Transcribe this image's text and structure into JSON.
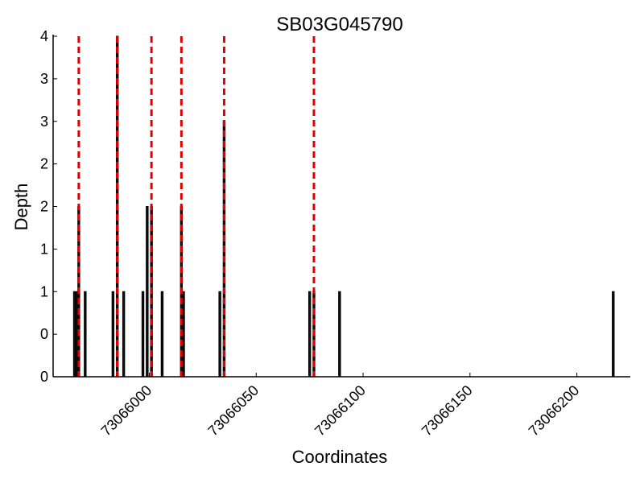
{
  "chart_data": {
    "type": "bar",
    "title": "SB03G045790",
    "xlabel": "Coordinates",
    "ylabel": "Depth",
    "xlim": [
      73065955,
      73066225
    ],
    "ylim": [
      0,
      4
    ],
    "x_ticks": [
      73066000,
      73066050,
      73066100,
      73066150,
      73066200
    ],
    "x_tick_labels": [
      "73066000",
      "73066050",
      "73066100",
      "73066150",
      "73066200"
    ],
    "y_ticks": [
      0,
      0.5,
      1,
      1.5,
      2,
      2.5,
      3,
      3.5,
      4
    ],
    "y_tick_labels": [
      "0",
      "0",
      "1",
      "1",
      "2",
      "2",
      "3",
      "3",
      "4"
    ],
    "grid": false,
    "bars": {
      "x": [
        73065965,
        73065966,
        73065967,
        73065970,
        73065983,
        73065985,
        73065988,
        73065997,
        73065999,
        73066001,
        73066006,
        73066015,
        73066016,
        73066033,
        73066035,
        73066075,
        73066077,
        73066089,
        73066217
      ],
      "values": [
        1,
        1,
        2,
        1,
        1,
        4,
        1,
        1,
        2,
        2,
        1,
        2,
        1,
        1,
        3,
        1,
        1,
        1,
        1
      ]
    },
    "markers": {
      "color": "#e00000",
      "style": "dashed",
      "x": [
        73065967,
        73065985,
        73066001,
        73066015,
        73066035,
        73066077
      ]
    }
  }
}
